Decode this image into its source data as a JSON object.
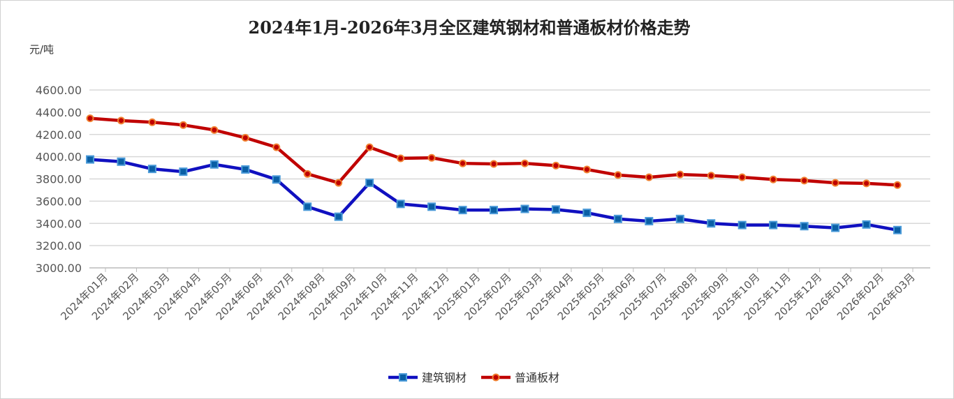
{
  "chart_data": {
    "type": "line",
    "title": "2024年1月-2026年3月全区建筑钢材和普通板材价格走势",
    "ylabel": "元/吨",
    "xlabel": "",
    "ylim": [
      3000,
      4600
    ],
    "yticks": [
      "3000.00",
      "3200.00",
      "3400.00",
      "3600.00",
      "3800.00",
      "4000.00",
      "4200.00",
      "4400.00",
      "4600.00"
    ],
    "grid": true,
    "legend_position": "bottom",
    "categories": [
      "2024年01月",
      "2024年02月",
      "2024年03月",
      "2024年04月",
      "2024年05月",
      "2024年06月",
      "2024年07月",
      "2024年08月",
      "2024年09月",
      "2024年10月",
      "2024年11月",
      "2024年12月",
      "2025年01月",
      "2025年02月",
      "2025年03月",
      "2025年04月",
      "2025年05月",
      "2025年06月",
      "2025年07月",
      "2025年08月",
      "2025年09月",
      "2025年10月",
      "2025年11月",
      "2025年12月",
      "2026年01月",
      "2026年02月",
      "2026年03月"
    ],
    "series": [
      {
        "name": "建筑钢材",
        "color": "#1010c0",
        "marker": "square",
        "marker_color": "#1a6fb5",
        "values": [
          3975,
          3955,
          3890,
          3865,
          3930,
          3885,
          3795,
          3550,
          3460,
          3765,
          3575,
          3550,
          3520,
          3520,
          3530,
          3525,
          3495,
          3440,
          3420,
          3440,
          3400,
          3385,
          3385,
          3375,
          3360,
          3390,
          3340
        ]
      },
      {
        "name": "普通板材",
        "color": "#c00000",
        "marker": "circle",
        "marker_color": "#f08030",
        "values": [
          4345,
          4325,
          4310,
          4285,
          4240,
          4170,
          4085,
          3845,
          3765,
          4085,
          3985,
          3990,
          3940,
          3935,
          3940,
          3920,
          3885,
          3835,
          3815,
          3840,
          3830,
          3815,
          3795,
          3785,
          3765,
          3760,
          3745
        ]
      }
    ]
  }
}
